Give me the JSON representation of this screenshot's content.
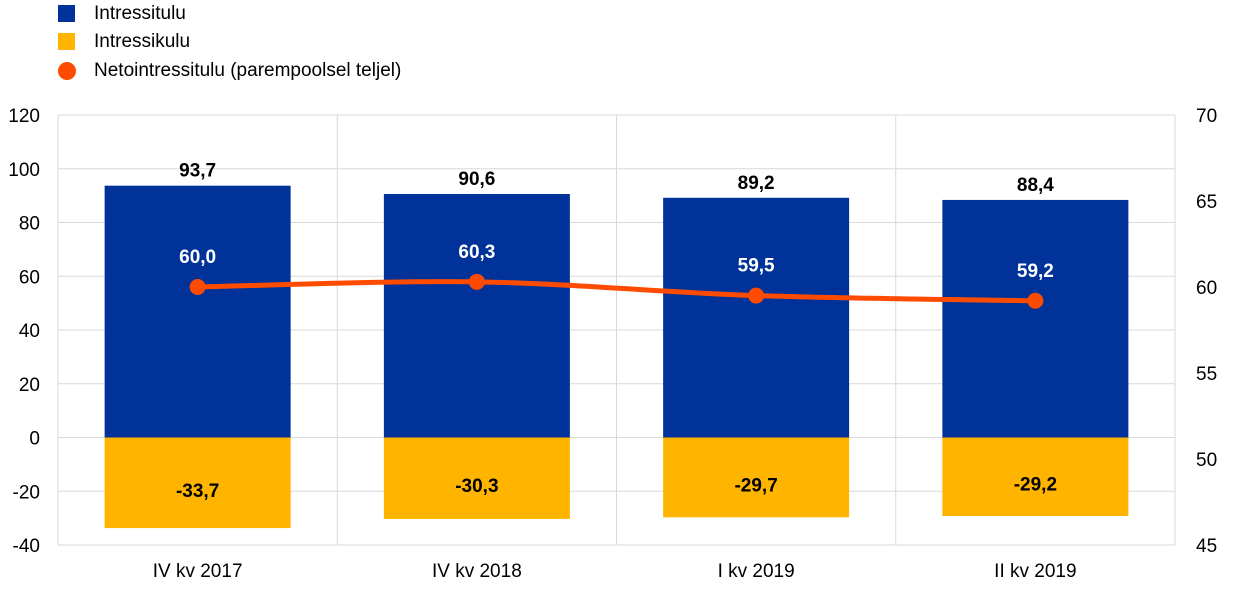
{
  "legend": [
    {
      "label": "Intressitulu",
      "color": "#003299",
      "shape": "square"
    },
    {
      "label": "Intressikulu",
      "color": "#FFB400",
      "shape": "square"
    },
    {
      "label": "Netointressitulu (parempoolsel teljel)",
      "color": "#FF4B00",
      "shape": "circle"
    }
  ],
  "chart_data": {
    "type": "bar",
    "categories": [
      "IV kv 2017",
      "IV kv 2018",
      "I kv 2019",
      "II kv 2019"
    ],
    "series": [
      {
        "name": "Intressitulu",
        "type": "bar",
        "axis": "left",
        "color": "#003299",
        "values": [
          93.7,
          90.6,
          89.2,
          88.4
        ],
        "labels": [
          "93,7",
          "90,6",
          "89,2",
          "88,4"
        ]
      },
      {
        "name": "Intressikulu",
        "type": "bar",
        "axis": "left",
        "color": "#FFB400",
        "values": [
          -33.7,
          -30.3,
          -29.7,
          -29.2
        ],
        "labels": [
          "-33,7",
          "-30,3",
          "-29,7",
          "-29,2"
        ]
      },
      {
        "name": "Netointressitulu (parempoolsel teljel)",
        "type": "line",
        "axis": "right",
        "color": "#FF4B00",
        "values": [
          60.0,
          60.3,
          59.5,
          59.2
        ],
        "labels": [
          "60,0",
          "60,3",
          "59,5",
          "59,2"
        ]
      }
    ],
    "y_left": {
      "ylim": [
        -40,
        120
      ],
      "ticks": [
        -40,
        -20,
        0,
        20,
        40,
        60,
        80,
        100,
        120
      ]
    },
    "y_right": {
      "ylim": [
        45,
        70
      ],
      "ticks": [
        45,
        50,
        55,
        60,
        65,
        70
      ]
    },
    "grid": true,
    "legend_position": "top-left"
  }
}
